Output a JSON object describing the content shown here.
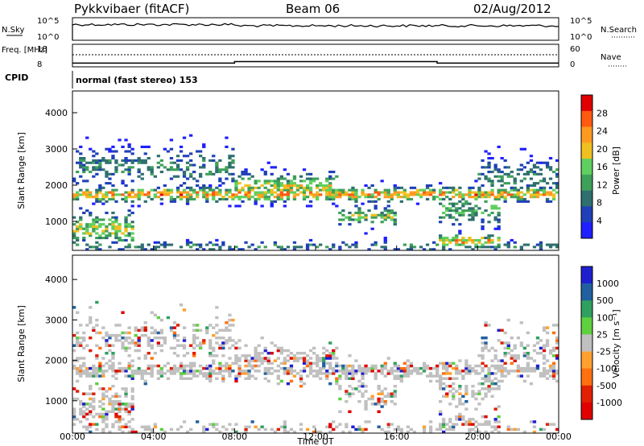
{
  "header": {
    "title": "Pykkvibaer (fitACF)",
    "beam": "Beam 06",
    "date": "02/Aug/2012",
    "cpid_label": "CPID",
    "cpid_text": "normal (fast stereo) 153"
  },
  "colors": {
    "power": [
      "#1f1fff",
      "#1f40b8",
      "#2f6f6f",
      "#3fa05a",
      "#5fd05f",
      "#f0c020",
      "#ff9a20",
      "#ff5a10",
      "#e00000"
    ],
    "velocity": [
      "#1f1fd0",
      "#2060a0",
      "#30a060",
      "#5fd040",
      "#c0c0c0",
      "#ffa030",
      "#ff7010",
      "#e02000",
      "#e00000"
    ]
  },
  "chart_data": [
    {
      "type": "line",
      "name": "nsky-panel",
      "ylabel": "N.Sky",
      "ylabel_right": "N.Search",
      "yticks_left": [
        "10^5",
        "10^0"
      ],
      "yticks_right": [
        "10^5",
        "10^0"
      ]
    },
    {
      "type": "line",
      "name": "freq-panel",
      "ylabel": "Freq. [MHz]",
      "ylabel_right": "Nave",
      "yticks_left": [
        "18",
        "8"
      ],
      "yticks_right": [
        "60",
        "0"
      ],
      "nave_steps": [
        {
          "x": 0,
          "y": 10
        },
        {
          "x": 8,
          "y": 14
        },
        {
          "x": 18,
          "y": 10
        },
        {
          "x": 24,
          "y": 10
        }
      ],
      "freq_level": 13
    },
    {
      "type": "heatmap",
      "name": "power-panel",
      "ylabel": "Slant Range [km]",
      "colorbar_label": "Power [dB]",
      "colorbar_ticks": [
        "28",
        "24",
        "20",
        "16",
        "12",
        "8",
        "4"
      ],
      "yticks": [
        "4000",
        "3000",
        "2000",
        "1000"
      ],
      "ylim": [
        200,
        4600
      ],
      "xlim": [
        0,
        24
      ]
    },
    {
      "type": "heatmap",
      "name": "velocity-panel",
      "ylabel": "Slant Range [km]",
      "colorbar_label": "Velocity [m s⁻¹]",
      "colorbar_ticks": [
        "1000",
        "500",
        "100",
        "25",
        "-25",
        "-100",
        "-500",
        "-1000"
      ],
      "yticks": [
        "4000",
        "3000",
        "2000",
        "1000"
      ],
      "ylim": [
        200,
        4600
      ],
      "xlim": [
        0,
        24
      ]
    }
  ],
  "xaxis": {
    "ticks": [
      "00:00",
      "04:00",
      "08:00",
      "12:00",
      "16:00",
      "20:00",
      "00:00"
    ],
    "label": "Time UT"
  }
}
